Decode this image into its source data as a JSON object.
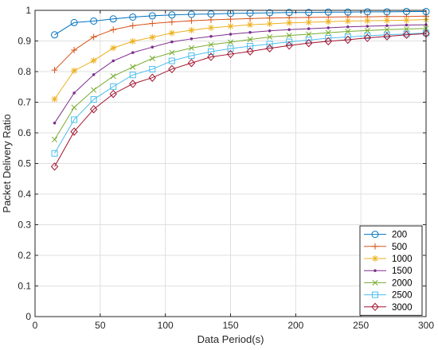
{
  "chart_data": {
    "type": "line",
    "title": "",
    "xlabel": "Data Period(s)",
    "ylabel": "Packet Delivery Ratio",
    "xlim": [
      0,
      300
    ],
    "ylim": [
      0,
      1
    ],
    "xticks": [
      0,
      50,
      100,
      150,
      200,
      250,
      300
    ],
    "yticks": [
      0,
      0.1,
      0.2,
      0.3,
      0.4,
      0.5,
      0.6,
      0.7,
      0.8,
      0.9,
      1
    ],
    "xtick_labels": [
      "0",
      "50",
      "100",
      "150",
      "200",
      "250",
      "300"
    ],
    "ytick_labels": [
      "0",
      "0.1",
      "0.2",
      "0.3",
      "0.4",
      "0.5",
      "0.6",
      "0.7",
      "0.8",
      "0.9",
      "1"
    ],
    "grid": true,
    "legend_position": "bottom-right",
    "x": [
      15,
      30,
      45,
      60,
      75,
      90,
      105,
      120,
      135,
      150,
      165,
      180,
      195,
      210,
      225,
      240,
      255,
      270,
      285,
      300
    ],
    "series": [
      {
        "name": "200",
        "color": "#0072BD",
        "marker": "circle",
        "values": [
          0.92,
          0.96,
          0.965,
          0.972,
          0.978,
          0.982,
          0.985,
          0.987,
          0.988,
          0.99,
          0.991,
          0.992,
          0.993,
          0.993,
          0.994,
          0.994,
          0.995,
          0.995,
          0.996,
          0.996
        ]
      },
      {
        "name": "500",
        "color": "#D95319",
        "marker": "plus",
        "values": [
          0.805,
          0.87,
          0.913,
          0.937,
          0.95,
          0.957,
          0.962,
          0.966,
          0.969,
          0.971,
          0.973,
          0.975,
          0.976,
          0.977,
          0.978,
          0.979,
          0.979,
          0.98,
          0.98,
          0.981
        ]
      },
      {
        "name": "1000",
        "color": "#EDB120",
        "marker": "asterisk",
        "values": [
          0.71,
          0.803,
          0.836,
          0.877,
          0.899,
          0.912,
          0.926,
          0.935,
          0.943,
          0.948,
          0.953,
          0.956,
          0.959,
          0.961,
          0.963,
          0.965,
          0.966,
          0.967,
          0.968,
          0.97
        ]
      },
      {
        "name": "1500",
        "color": "#7E2F8E",
        "marker": "point",
        "values": [
          0.632,
          0.73,
          0.79,
          0.835,
          0.862,
          0.88,
          0.897,
          0.907,
          0.915,
          0.922,
          0.928,
          0.933,
          0.937,
          0.94,
          0.943,
          0.946,
          0.948,
          0.95,
          0.952,
          0.953
        ]
      },
      {
        "name": "2000",
        "color": "#77AC30",
        "marker": "x",
        "values": [
          0.578,
          0.683,
          0.74,
          0.785,
          0.815,
          0.843,
          0.862,
          0.877,
          0.888,
          0.896,
          0.905,
          0.913,
          0.918,
          0.922,
          0.927,
          0.931,
          0.934,
          0.937,
          0.939,
          0.941
        ]
      },
      {
        "name": "2500",
        "color": "#4DBEEE",
        "marker": "square",
        "values": [
          0.533,
          0.643,
          0.709,
          0.751,
          0.789,
          0.808,
          0.835,
          0.852,
          0.865,
          0.875,
          0.883,
          0.89,
          0.897,
          0.903,
          0.909,
          0.913,
          0.917,
          0.92,
          0.923,
          0.926
        ]
      },
      {
        "name": "3000",
        "color": "#A2142F",
        "marker": "diamond",
        "values": [
          0.49,
          0.604,
          0.677,
          0.727,
          0.76,
          0.78,
          0.808,
          0.828,
          0.848,
          0.857,
          0.866,
          0.876,
          0.885,
          0.893,
          0.899,
          0.904,
          0.91,
          0.915,
          0.92,
          0.924
        ]
      }
    ]
  }
}
